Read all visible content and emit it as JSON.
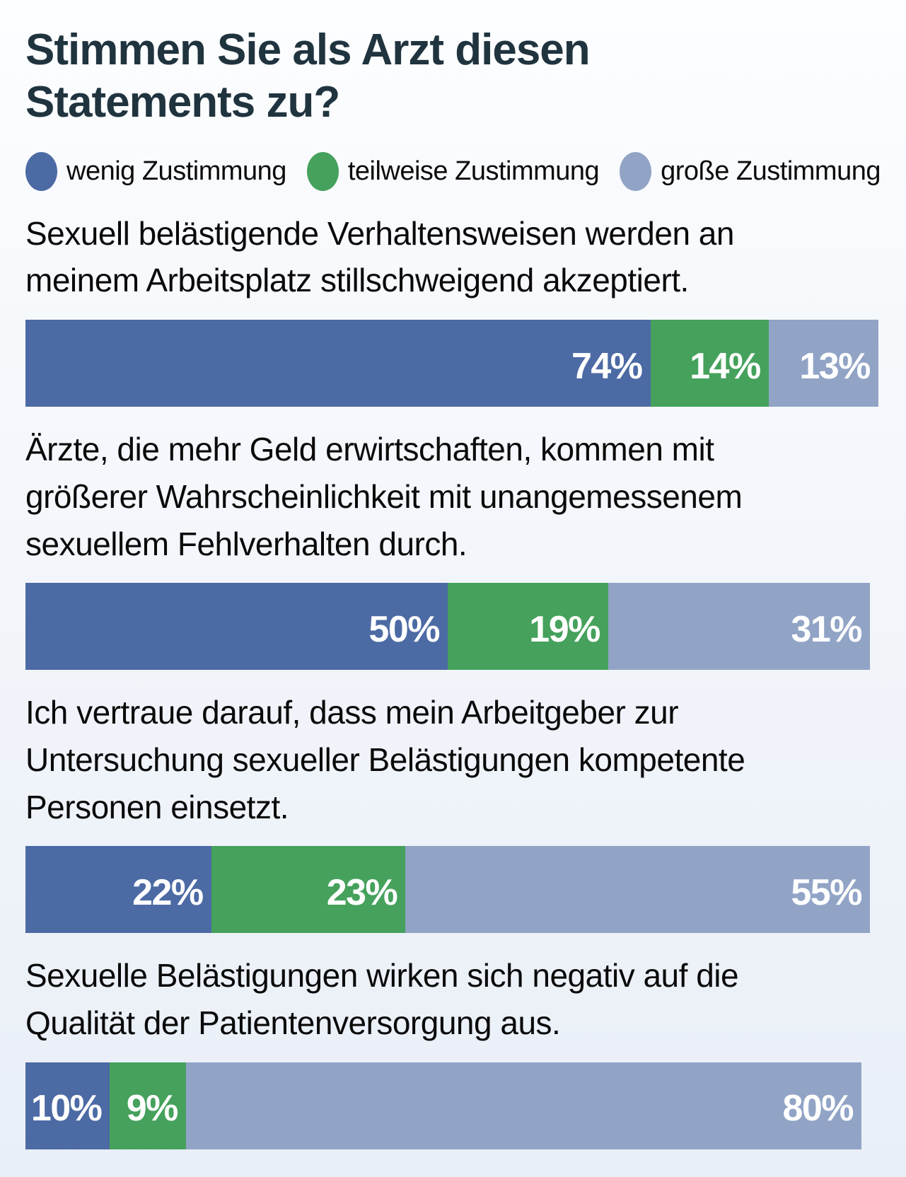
{
  "page": {
    "title": "Stimmen Sie als Arzt diesen Statements zu?"
  },
  "legend": {
    "items": [
      {
        "label": "wenig Zustimmung",
        "color": "#4c6aa4"
      },
      {
        "label": "teilweise Zustimmung",
        "color": "#45a15c"
      },
      {
        "label": "große Zustimmung",
        "color": "#91a4c6"
      }
    ]
  },
  "chart_data": {
    "type": "bar",
    "subtype": "horizontal-stacked",
    "title": "Stimmen Sie als Arzt diesen Statements zu?",
    "unit": "%",
    "xlim": [
      0,
      100
    ],
    "legend_position": "top",
    "grid": false,
    "colors": [
      "#4c6aa4",
      "#45a15c",
      "#91a4c6"
    ],
    "series_names": [
      "wenig Zustimmung",
      "teilweise Zustimmung",
      "große Zustimmung"
    ],
    "categories": [
      "Sexuell belästigende Verhaltensweisen werden an meinem Arbeitsplatz stillschweigend akzeptiert.",
      "Ärzte, die mehr Geld erwirtschaften, kommen mit größerer Wahrscheinlichkeit mit unangemessenem sexuellem Fehlverhalten durch.",
      "Ich vertraue darauf, dass mein Arbeitgeber zur Untersuchung sexueller Belästigungen kompetente Personen einsetzt.",
      "Sexuelle Belästigungen wirken sich negativ auf die Qualität der Patientenversorgung aus."
    ],
    "series": [
      {
        "name": "wenig Zustimmung",
        "values": [
          74,
          50,
          22,
          10
        ]
      },
      {
        "name": "teilweise Zustimmung",
        "values": [
          14,
          19,
          23,
          9
        ]
      },
      {
        "name": "große Zustimmung",
        "values": [
          13,
          31,
          55,
          80
        ]
      }
    ],
    "statements": [
      {
        "text": "Sexuell belästigende Verhaltensweisen werden an meinem Arbeitsplatz stillschweigend akzeptiert.",
        "values": [
          74,
          14,
          13
        ],
        "labels": [
          "74%",
          "14%",
          "13%"
        ]
      },
      {
        "text": "Ärzte, die mehr Geld erwirtschaften, kommen mit größerer Wahrscheinlichkeit mit unangemessenem sexuellem Fehlverhalten durch.",
        "values": [
          50,
          19,
          31
        ],
        "labels": [
          "50%",
          "19%",
          "31%"
        ]
      },
      {
        "text": "Ich vertraue darauf, dass mein Arbeitgeber zur Untersuchung sexueller Belästigungen kompetente Personen einsetzt.",
        "values": [
          22,
          23,
          55
        ],
        "labels": [
          "22%",
          "23%",
          "55%"
        ]
      },
      {
        "text": "Sexuelle Belästigungen wirken sich negativ auf die Qualität der Patientenversorgung aus.",
        "values": [
          10,
          9,
          80
        ],
        "labels": [
          "10%",
          "9%",
          "80%"
        ]
      }
    ]
  }
}
